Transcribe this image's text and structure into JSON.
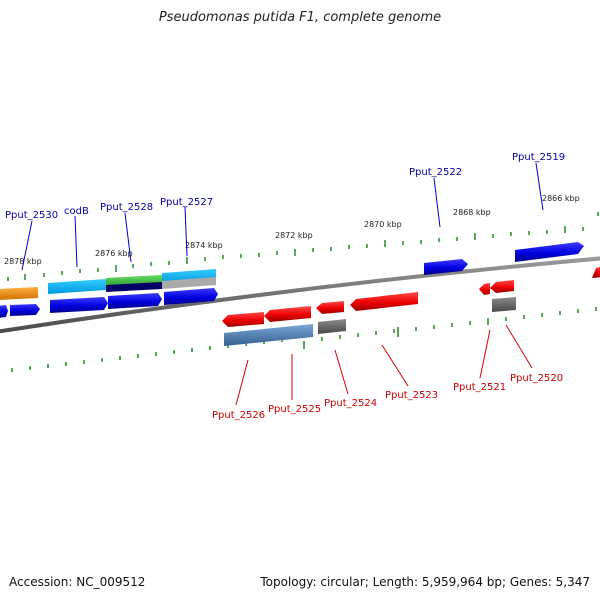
{
  "title": "Pseudomonas putida F1, complete genome",
  "footer": {
    "accession": "Accession: NC_009512",
    "stats": "Topology: circular; Length: 5,959,964 bp; Genes: 5,347"
  },
  "colors": {
    "backbone": "#6e6e6e",
    "tick": "#1f8a1f",
    "plus_label": "#0000aa",
    "minus_label": "#cc0000"
  },
  "positions": [
    "2878 kbp",
    "2876 kbp",
    "2874 kbp",
    "2872 kbp",
    "2870 kbp",
    "2868 kbp",
    "2866 kbp"
  ],
  "gene_labels_plus": [
    "Pput_2530",
    "codB",
    "Pput_2528",
    "Pput_2527",
    "Pput_2522",
    "Pput_2519"
  ],
  "gene_labels_minus": [
    "Pput_2526",
    "Pput_2525",
    "Pput_2524",
    "Pput_2523",
    "Pput_2521",
    "Pput_2520"
  ]
}
